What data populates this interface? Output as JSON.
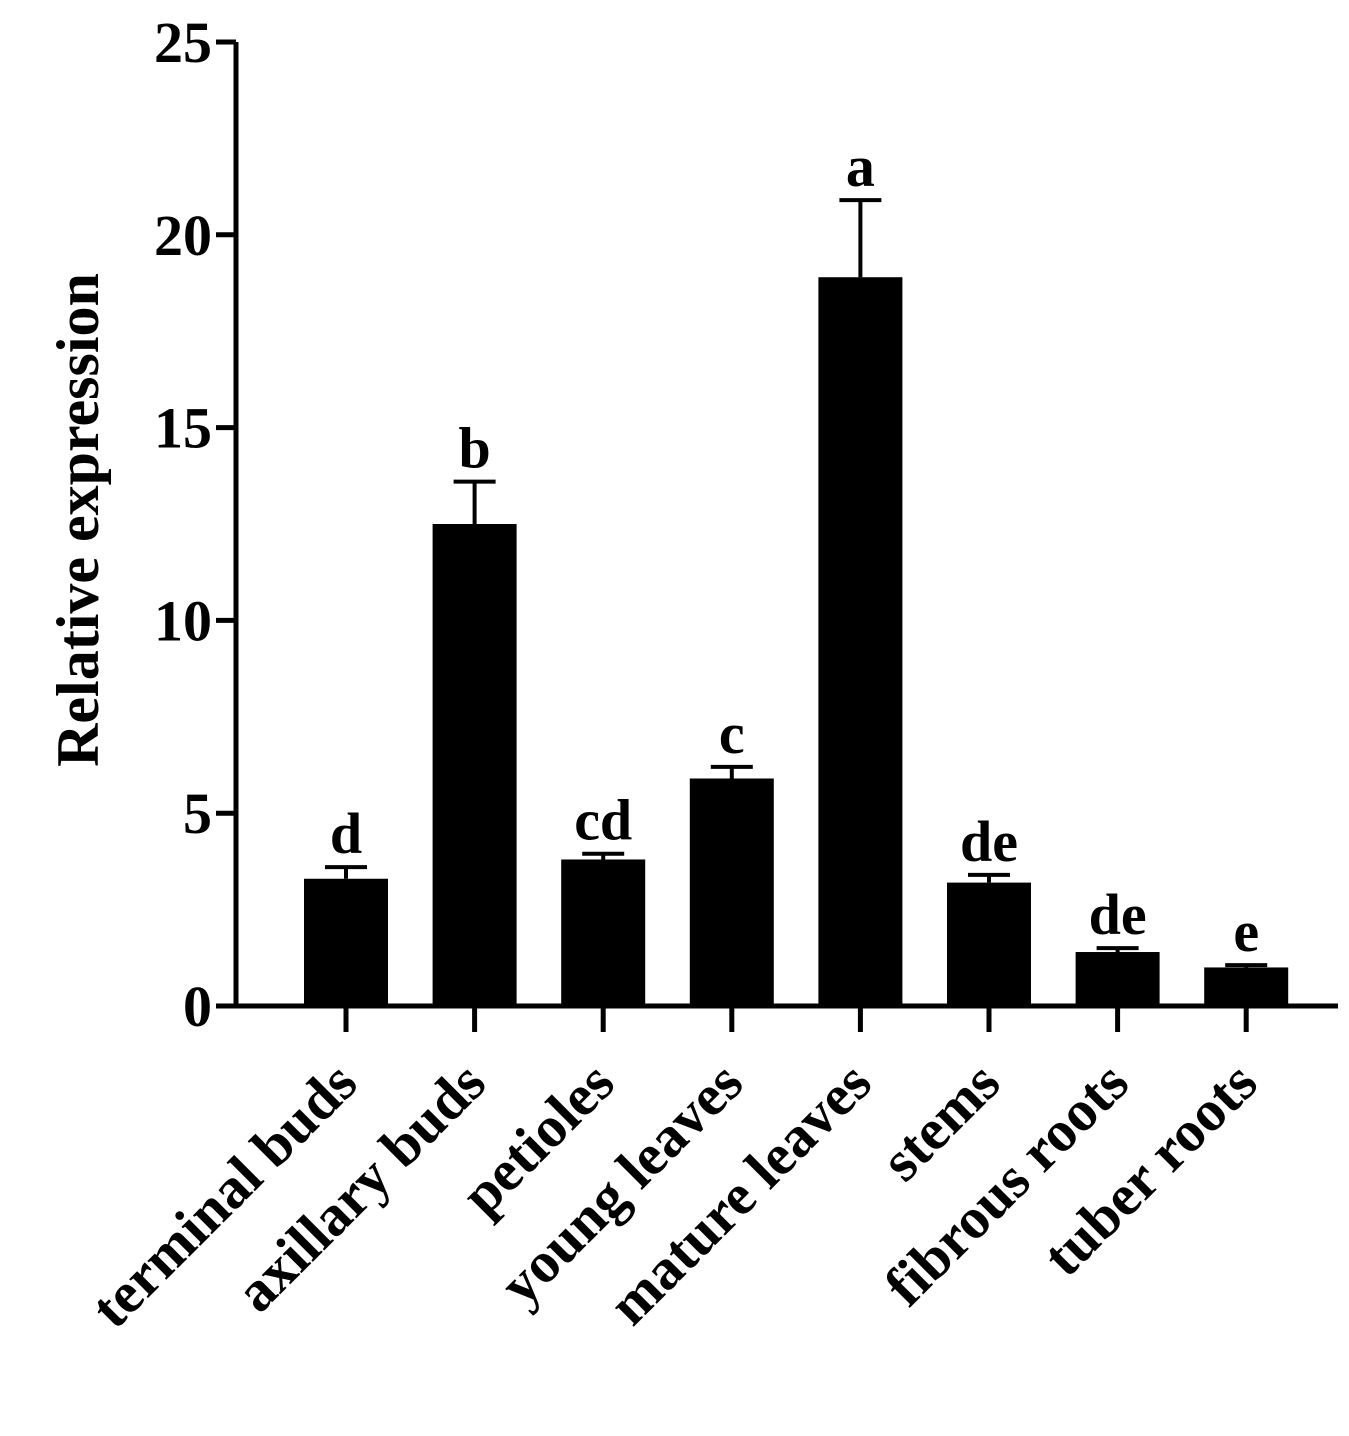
{
  "chart_data": {
    "type": "bar",
    "title": "",
    "xlabel": "",
    "ylabel": "Relative expression",
    "ylim": [
      0,
      25
    ],
    "yticks": [
      0,
      5,
      10,
      15,
      20,
      25
    ],
    "categories": [
      "terminal buds",
      "axillary buds",
      "petioles",
      "young leaves",
      "mature leaves",
      "stems",
      "fibrous roots",
      "tuber roots"
    ],
    "values": [
      3.3,
      12.5,
      3.8,
      5.9,
      18.9,
      3.2,
      1.4,
      1.0
    ],
    "errors": [
      0.3,
      1.1,
      0.15,
      0.3,
      2.0,
      0.2,
      0.1,
      0.06
    ],
    "significance": [
      "d",
      "b",
      "cd",
      "c",
      "a",
      "de",
      "de",
      "e"
    ],
    "bar_color": "#000000",
    "grid": false,
    "legend": "none"
  }
}
